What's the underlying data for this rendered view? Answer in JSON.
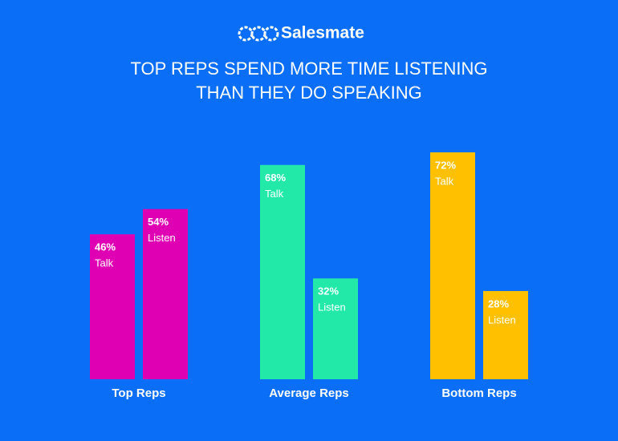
{
  "header": {
    "brand": "Salesmate"
  },
  "chart_data": {
    "type": "bar",
    "title": [
      "TOP REPS SPEND MORE TIME LISTENING",
      "THAN THEY DO SPEAKING"
    ],
    "categories": [
      "Top Reps",
      "Average Reps",
      "Bottom Reps"
    ],
    "colors": [
      "#e000b4",
      "#22e8a8",
      "#ffc000"
    ],
    "series": [
      {
        "name": "Talk",
        "values": [
          46,
          68,
          72
        ],
        "value_labels": [
          "46%",
          "68%",
          "72%"
        ]
      },
      {
        "name": "Listen",
        "values": [
          54,
          32,
          28
        ],
        "value_labels": [
          "54%",
          "32%",
          "28%"
        ]
      }
    ]
  }
}
